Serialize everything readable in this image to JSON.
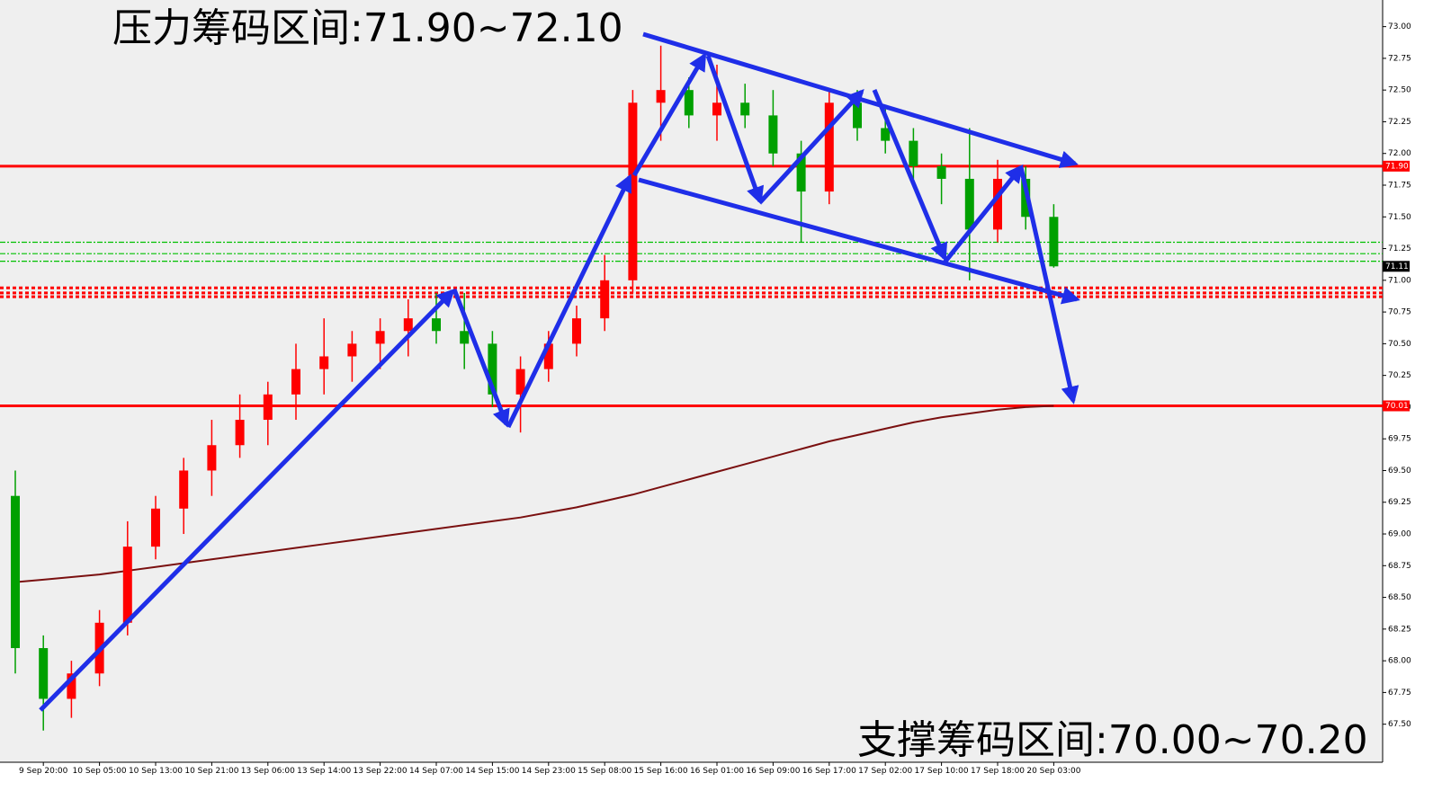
{
  "chart_data": {
    "type": "candlestick",
    "annotations": [
      "压力筹码区间:71.90~72.10",
      "支撑筹码区间:70.00~70.20"
    ],
    "categories": [
      null,
      "9 Sep 20:00",
      null,
      "10 Sep 05:00",
      null,
      "10 Sep 13:00",
      null,
      "10 Sep 21:00",
      null,
      "13 Sep 06:00",
      null,
      "13 Sep 14:00",
      null,
      "13 Sep 22:00",
      null,
      "14 Sep 07:00",
      null,
      "14 Sep 15:00",
      null,
      "14 Sep 23:00",
      null,
      "15 Sep 08:00",
      null,
      "15 Sep 16:00",
      null,
      "16 Sep 01:00",
      null,
      "16 Sep 09:00",
      null,
      "16 Sep 17:00",
      null,
      "17 Sep 02:00",
      null,
      "17 Sep 10:00",
      null,
      "17 Sep 18:00",
      null,
      "20 Sep 03:00"
    ],
    "open": [
      69.3,
      68.1,
      67.7,
      67.9,
      68.3,
      68.9,
      69.2,
      69.5,
      69.7,
      69.9,
      70.1,
      70.3,
      70.4,
      70.5,
      70.6,
      70.7,
      70.6,
      70.5,
      70.1,
      70.3,
      70.5,
      70.7,
      71.0,
      72.4,
      72.5,
      72.3,
      72.4,
      72.3,
      72.0,
      71.7,
      72.4,
      72.2,
      72.1,
      71.9,
      71.8,
      71.4,
      71.8,
      71.5
    ],
    "high": [
      69.5,
      68.2,
      68.0,
      68.4,
      69.1,
      69.3,
      69.6,
      69.9,
      70.1,
      70.2,
      70.5,
      70.7,
      70.6,
      70.7,
      70.85,
      70.9,
      70.9,
      70.6,
      70.4,
      70.6,
      70.8,
      71.2,
      72.5,
      72.85,
      72.6,
      72.7,
      72.55,
      72.5,
      72.1,
      72.5,
      72.5,
      72.35,
      72.2,
      72.0,
      72.2,
      71.95,
      71.9,
      71.6
    ],
    "low": [
      67.9,
      67.45,
      67.55,
      67.8,
      68.2,
      68.8,
      69.0,
      69.3,
      69.6,
      69.7,
      69.9,
      70.1,
      70.2,
      70.3,
      70.4,
      70.5,
      70.3,
      70.0,
      69.8,
      70.2,
      70.4,
      70.6,
      70.9,
      72.1,
      72.2,
      72.1,
      72.2,
      71.9,
      71.3,
      71.6,
      72.1,
      72.0,
      71.8,
      71.6,
      71.0,
      71.3,
      71.4,
      71.1
    ],
    "close": [
      68.1,
      67.7,
      67.9,
      68.3,
      68.9,
      69.2,
      69.5,
      69.7,
      69.9,
      70.1,
      70.3,
      70.4,
      70.5,
      70.6,
      70.7,
      70.6,
      70.5,
      70.1,
      70.3,
      70.5,
      70.7,
      71.0,
      72.4,
      72.5,
      72.3,
      72.4,
      72.3,
      72.0,
      71.7,
      72.4,
      72.2,
      72.1,
      71.9,
      71.8,
      71.4,
      71.8,
      71.5,
      71.11
    ],
    "up_color": "#ff0000",
    "down_color": "#00a000",
    "series": [
      {
        "color": "#7a1010",
        "values": [
          68.62,
          68.64,
          68.66,
          68.68,
          68.71,
          68.74,
          68.77,
          68.8,
          68.83,
          68.86,
          68.89,
          68.92,
          68.95,
          68.98,
          69.01,
          69.04,
          69.07,
          69.1,
          69.13,
          69.17,
          69.21,
          69.26,
          69.31,
          69.37,
          69.43,
          69.49,
          69.55,
          69.61,
          69.67,
          69.73,
          69.78,
          69.83,
          69.88,
          69.92,
          69.95,
          69.98,
          70.0,
          70.01
        ]
      }
    ],
    "levels": [
      {
        "value": 71.9,
        "label": "71.90",
        "color": "#ff0000",
        "style": "solid"
      },
      {
        "value": 70.01,
        "label": "70.01",
        "color": "#ff0000",
        "style": "solid"
      },
      {
        "value": 71.11,
        "label": "71.11",
        "color": "#000000",
        "style": "none"
      },
      {
        "value": 71.3,
        "color": "#00c000",
        "style": "dotted"
      },
      {
        "value": 71.21,
        "color": "#00c000",
        "style": "dotted"
      },
      {
        "value": 71.15,
        "color": "#00c000",
        "style": "dotted"
      },
      {
        "value": 70.94,
        "color": "#ff0000",
        "style": "dashed"
      },
      {
        "value": 70.9,
        "color": "#ff0000",
        "style": "dashed"
      },
      {
        "value": 70.87,
        "color": "#ff0000",
        "style": "dashed"
      }
    ],
    "ylim": [
      67.2,
      73.21
    ],
    "yticks": [
      {
        "value": 67.5,
        "label": "67.50"
      },
      {
        "value": 67.75,
        "label": "67.75"
      },
      {
        "value": 68,
        "label": "68.00"
      },
      {
        "value": 68.25,
        "label": "68.25"
      },
      {
        "value": 68.5,
        "label": "68.50"
      },
      {
        "value": 68.75,
        "label": "68.75"
      },
      {
        "value": 69,
        "label": "69.00"
      },
      {
        "value": 69.25,
        "label": "69.25"
      },
      {
        "value": 69.5,
        "label": "69.50"
      },
      {
        "value": 69.75,
        "label": "69.75"
      },
      {
        "value": 70,
        "label": "70.00"
      },
      {
        "value": 70.25,
        "label": "70.25"
      },
      {
        "value": 70.5,
        "label": "70.50"
      },
      {
        "value": 70.75,
        "label": "70.75"
      },
      {
        "value": 71,
        "label": "71.00"
      },
      {
        "value": 71.25,
        "label": "71.25"
      },
      {
        "value": 71.5,
        "label": "71.50"
      },
      {
        "value": 71.75,
        "label": "71.75"
      },
      {
        "value": 72,
        "label": "72.00"
      },
      {
        "value": 72.25,
        "label": "72.25"
      },
      {
        "value": 72.5,
        "label": "72.50"
      },
      {
        "value": 72.75,
        "label": "72.75"
      },
      {
        "value": 73,
        "label": "73.00"
      }
    ]
  }
}
